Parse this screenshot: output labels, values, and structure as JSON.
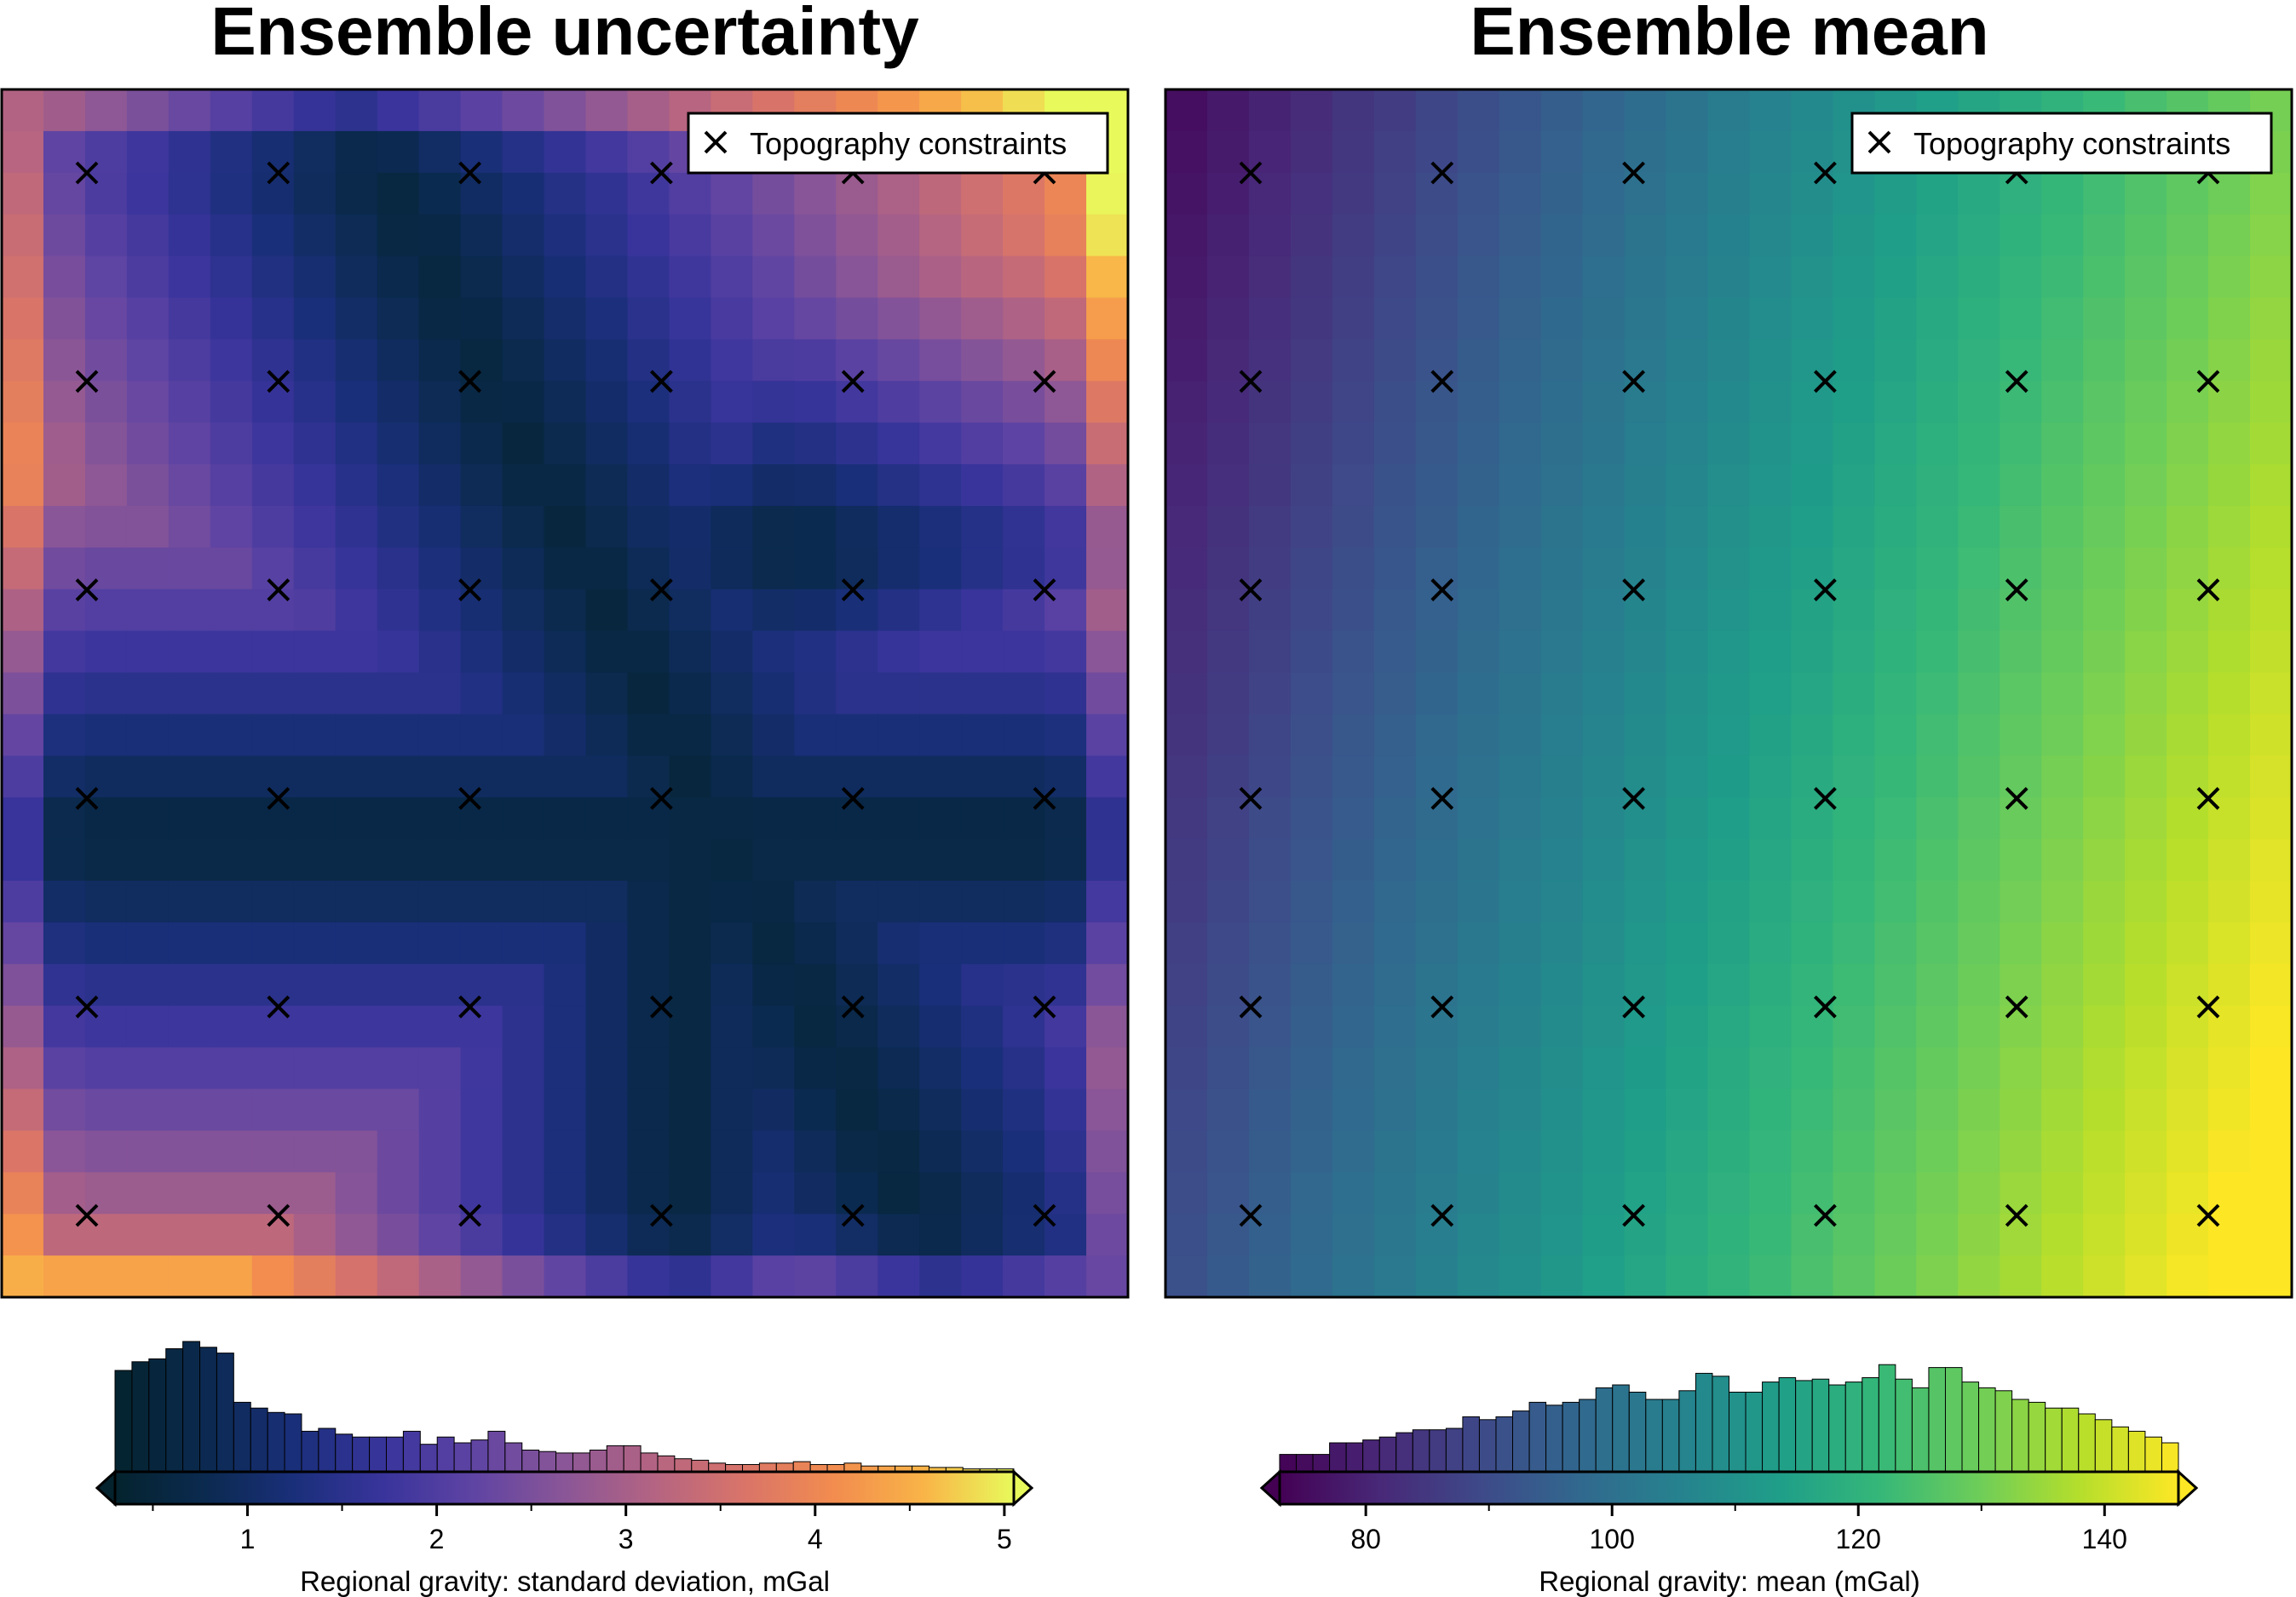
{
  "chart_data": [
    {
      "type": "heatmap",
      "title": "Ensemble uncertainty",
      "colormap": "thermal",
      "colorbar": {
        "label": "Regional gravity:  standard deviation, mGal",
        "range": [
          0.3,
          5.05
        ],
        "ticks": [
          1,
          2,
          3,
          4,
          5
        ],
        "tick_labels": [
          "1",
          "2",
          "3",
          "4",
          "5"
        ],
        "minor_ticks": [
          0.5,
          1.5,
          2.5,
          3.5,
          4.5
        ]
      },
      "legend": {
        "label": "Topography constraints",
        "marker": "x",
        "position": "top-right"
      },
      "grid_size": [
        27,
        29
      ],
      "constraints": {
        "columns": [
          0,
          1,
          2,
          3,
          4,
          5
        ],
        "rows": [
          0,
          1,
          2,
          3,
          4,
          5
        ]
      },
      "histogram": [
        0.7,
        0.76,
        0.78,
        0.85,
        0.9,
        0.86,
        0.82,
        0.48,
        0.44,
        0.41,
        0.4,
        0.28,
        0.3,
        0.26,
        0.24,
        0.24,
        0.24,
        0.28,
        0.19,
        0.24,
        0.2,
        0.22,
        0.28,
        0.2,
        0.15,
        0.14,
        0.13,
        0.13,
        0.15,
        0.18,
        0.18,
        0.13,
        0.11,
        0.09,
        0.08,
        0.06,
        0.05,
        0.05,
        0.06,
        0.06,
        0.07,
        0.05,
        0.05,
        0.06,
        0.04,
        0.04,
        0.04,
        0.04,
        0.03,
        0.03,
        0.02,
        0.02,
        0.02
      ]
    },
    {
      "type": "heatmap",
      "title": "Ensemble mean",
      "colormap": "viridis",
      "colorbar": {
        "label": "Regional gravity:  mean (mGal)",
        "range": [
          73,
          146
        ],
        "ticks": [
          80,
          100,
          120,
          140
        ],
        "tick_labels": [
          "80",
          "100",
          "120",
          "140"
        ],
        "minor_ticks": [
          90,
          110,
          130
        ]
      },
      "legend": {
        "label": "Topography constraints",
        "marker": "x",
        "position": "top-right"
      },
      "grid_size": [
        27,
        29
      ],
      "value_range": [
        73,
        146
      ],
      "constraints": {
        "columns": [
          0,
          1,
          2,
          3,
          4,
          5
        ],
        "rows": [
          0,
          1,
          2,
          3,
          4,
          5
        ]
      },
      "histogram": [
        0.12,
        0.12,
        0.12,
        0.2,
        0.2,
        0.22,
        0.24,
        0.27,
        0.29,
        0.29,
        0.3,
        0.38,
        0.36,
        0.38,
        0.42,
        0.48,
        0.46,
        0.48,
        0.5,
        0.58,
        0.6,
        0.55,
        0.5,
        0.5,
        0.56,
        0.68,
        0.66,
        0.55,
        0.55,
        0.62,
        0.65,
        0.63,
        0.64,
        0.6,
        0.62,
        0.65,
        0.74,
        0.64,
        0.58,
        0.72,
        0.72,
        0.62,
        0.58,
        0.56,
        0.5,
        0.48,
        0.44,
        0.44,
        0.4,
        0.36,
        0.31,
        0.28,
        0.24,
        0.2
      ]
    }
  ]
}
